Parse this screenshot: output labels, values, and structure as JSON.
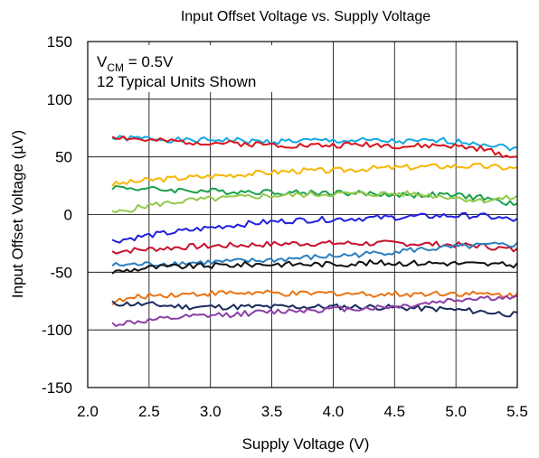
{
  "chart_data": {
    "type": "line",
    "title": "Input Offset Voltage vs. Supply Voltage",
    "xlabel": "Supply Voltage (V)",
    "ylabel": "Input Offset Voltage (µV)",
    "xlim": [
      2.0,
      5.5
    ],
    "ylim": [
      -150,
      150
    ],
    "xticks": [
      "2.0",
      "2.5",
      "3.0",
      "3.5",
      "4.0",
      "4.5",
      "5.0",
      "5.5"
    ],
    "yticks": [
      "150",
      "100",
      "50",
      "0",
      "-50",
      "-100",
      "-150"
    ],
    "grid": true,
    "legend": "none",
    "annotations": {
      "line1_main": "V",
      "line1_sub": "CM",
      "line1_rest": " = 0.5V",
      "line2": "12 Typical Units Shown"
    },
    "x": [
      2.2,
      2.5,
      2.8,
      3.1,
      3.4,
      3.7,
      4.0,
      4.3,
      4.6,
      4.9,
      5.2,
      5.5
    ],
    "series": [
      {
        "color": "#12a8e0",
        "values": [
          66,
          66,
          64,
          65,
          63,
          64,
          64,
          64,
          63,
          64,
          62,
          57
        ]
      },
      {
        "color": "#d9141c",
        "values": [
          68,
          64,
          63,
          62,
          61,
          60,
          60,
          61,
          59,
          60,
          57,
          49
        ]
      },
      {
        "color": "#f7b600",
        "values": [
          26,
          30,
          32,
          34,
          36,
          38,
          38,
          40,
          41,
          42,
          42,
          40
        ]
      },
      {
        "color": "#1aa14a",
        "values": [
          24,
          22,
          21,
          20,
          20,
          19,
          19,
          18,
          17,
          17,
          15,
          8
        ]
      },
      {
        "color": "#93c94b",
        "values": [
          1,
          8,
          12,
          14,
          16,
          17,
          18,
          18,
          18,
          16,
          12,
          15
        ]
      },
      {
        "color": "#1f1fe0",
        "values": [
          -23,
          -18,
          -14,
          -10,
          -7,
          -5,
          -4,
          -3,
          -2,
          -1,
          -1,
          -5
        ]
      },
      {
        "color": "#c8102e",
        "values": [
          -32,
          -30,
          -28,
          -27,
          -26,
          -25,
          -25,
          -25,
          -25,
          -26,
          -27,
          -31
        ]
      },
      {
        "color": "#2a7fc0",
        "values": [
          -44,
          -43,
          -42,
          -41,
          -40,
          -38,
          -36,
          -34,
          -31,
          -29,
          -27,
          -26
        ]
      },
      {
        "color": "#111111",
        "values": [
          -50,
          -46,
          -45,
          -44,
          -43,
          -43,
          -43,
          -42,
          -42,
          -42,
          -43,
          -44
        ]
      },
      {
        "color": "#ea7413",
        "values": [
          -76,
          -70,
          -69,
          -68,
          -68,
          -69,
          -68,
          -69,
          -69,
          -68,
          -69,
          -70
        ]
      },
      {
        "color": "#1a2a5c",
        "values": [
          -77,
          -78,
          -80,
          -80,
          -80,
          -80,
          -80,
          -80,
          -81,
          -82,
          -84,
          -87
        ]
      },
      {
        "color": "#8c3fa8",
        "values": [
          -95,
          -92,
          -89,
          -87,
          -85,
          -83,
          -82,
          -81,
          -79,
          -75,
          -72,
          -73
        ]
      }
    ]
  }
}
